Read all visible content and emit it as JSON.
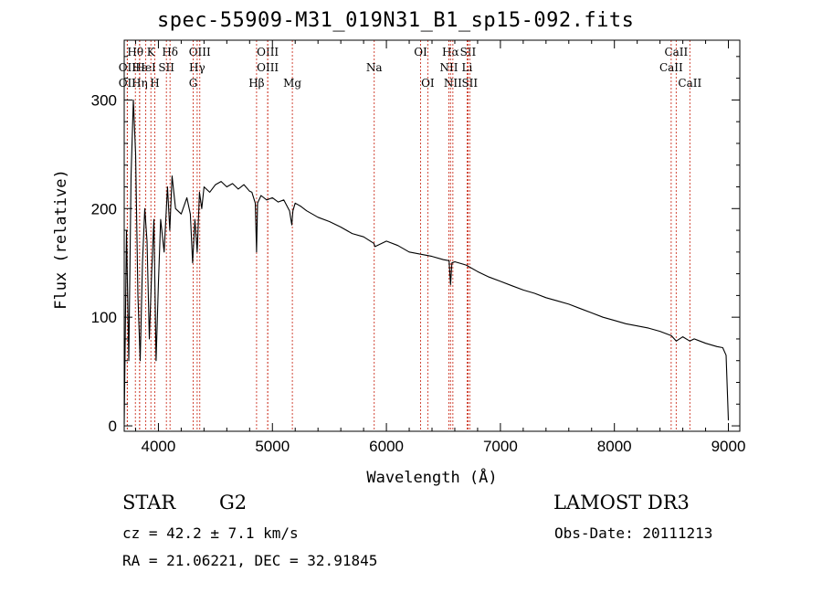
{
  "chart_data": {
    "type": "line",
    "title": "spec-55909-M31_019N31_B1_sp15-092.fits",
    "xlabel": "Wavelength (Å)",
    "ylabel": "Flux (relative)",
    "xlim": [
      3700,
      9100
    ],
    "ylim": [
      -5,
      355
    ],
    "x_ticks": [
      4000,
      5000,
      6000,
      7000,
      8000,
      9000
    ],
    "y_ticks": [
      0,
      100,
      200,
      300
    ],
    "x_minor_step": 200,
    "y_minor_step": 20,
    "grid": false,
    "series": [
      {
        "name": "spectrum",
        "x": [
          3700,
          3720,
          3740,
          3760,
          3780,
          3800,
          3820,
          3840,
          3860,
          3880,
          3900,
          3920,
          3940,
          3960,
          3980,
          4000,
          4020,
          4050,
          4080,
          4100,
          4120,
          4150,
          4200,
          4250,
          4280,
          4300,
          4320,
          4340,
          4360,
          4380,
          4400,
          4450,
          4500,
          4550,
          4600,
          4650,
          4700,
          4750,
          4800,
          4820,
          4850,
          4861,
          4870,
          4900,
          4950,
          5000,
          5050,
          5100,
          5150,
          5170,
          5180,
          5200,
          5250,
          5300,
          5400,
          5500,
          5600,
          5700,
          5800,
          5890,
          5900,
          6000,
          6100,
          6200,
          6300,
          6400,
          6500,
          6550,
          6563,
          6575,
          6600,
          6700,
          6800,
          6900,
          7000,
          7100,
          7200,
          7300,
          7400,
          7500,
          7600,
          7700,
          7800,
          7900,
          8000,
          8100,
          8200,
          8300,
          8400,
          8500,
          8542,
          8600,
          8662,
          8700,
          8800,
          8900,
          8950,
          8980,
          9000
        ],
        "y": [
          2,
          180,
          60,
          230,
          300,
          250,
          120,
          60,
          150,
          200,
          170,
          80,
          140,
          190,
          60,
          130,
          190,
          160,
          220,
          180,
          230,
          200,
          195,
          210,
          195,
          150,
          190,
          160,
          215,
          200,
          220,
          215,
          222,
          225,
          220,
          223,
          218,
          222,
          216,
          215,
          205,
          160,
          205,
          212,
          208,
          210,
          206,
          208,
          198,
          185,
          198,
          205,
          202,
          198,
          192,
          188,
          183,
          177,
          174,
          168,
          165,
          170,
          166,
          160,
          158,
          156,
          153,
          152,
          130,
          150,
          151,
          148,
          142,
          137,
          133,
          129,
          125,
          122,
          118,
          115,
          112,
          108,
          104,
          100,
          97,
          94,
          92,
          90,
          87,
          83,
          78,
          82,
          78,
          80,
          76,
          73,
          72,
          65,
          5
        ]
      }
    ],
    "lines": [
      {
        "label": "Hθ",
        "wave": 3798,
        "row": 0
      },
      {
        "label": "K",
        "wave": 3934,
        "row": 0
      },
      {
        "label": "Hδ",
        "wave": 4102,
        "row": 0
      },
      {
        "label": "OIII",
        "wave": 4363,
        "row": 0
      },
      {
        "label": "OIII",
        "wave": 4959,
        "row": 0
      },
      {
        "label": "OI",
        "wave": 6300,
        "row": 0
      },
      {
        "label": "Hα",
        "wave": 6563,
        "row": 0
      },
      {
        "label": "SII",
        "wave": 6716,
        "row": 0
      },
      {
        "label": "CaII",
        "wave": 8542,
        "row": 0
      },
      {
        "label": "OII",
        "wave": 3727,
        "row": 1
      },
      {
        "label": "Hε",
        "wave": 3835,
        "row": 1
      },
      {
        "label": "HeI",
        "wave": 3889,
        "row": 1
      },
      {
        "label": "SII",
        "wave": 4070,
        "row": 1
      },
      {
        "label": "Hγ",
        "wave": 4340,
        "row": 1
      },
      {
        "label": "OIII",
        "wave": 4959,
        "row": 1
      },
      {
        "label": "NII",
        "wave": 6548,
        "row": 1
      },
      {
        "label": "Li",
        "wave": 6708,
        "row": 1
      },
      {
        "label": "CaII",
        "wave": 8498,
        "row": 1
      },
      {
        "label": "OII",
        "wave": 3727,
        "row": 2
      },
      {
        "label": "Hη",
        "wave": 3835,
        "row": 2
      },
      {
        "label": "H",
        "wave": 3968,
        "row": 2
      },
      {
        "label": "G",
        "wave": 4305,
        "row": 2
      },
      {
        "label": "Hβ",
        "wave": 4861,
        "row": 2
      },
      {
        "label": "Mg",
        "wave": 5175,
        "row": 2
      },
      {
        "label": "Na",
        "wave": 5893,
        "row": 1
      },
      {
        "label": "OI",
        "wave": 6363,
        "row": 2
      },
      {
        "label": "NII",
        "wave": 6583,
        "row": 2
      },
      {
        "label": "SII",
        "wave": 6731,
        "row": 2
      },
      {
        "label": "CaII",
        "wave": 8662,
        "row": 2
      }
    ]
  },
  "info": {
    "class": "STAR",
    "subclass": "G2",
    "survey": "LAMOST DR3",
    "redshift": "cz = 42.2 ± 7.1 km/s",
    "obs_date": "Obs-Date: 20111213",
    "coords": "RA =  21.06221, DEC =  32.91845"
  }
}
